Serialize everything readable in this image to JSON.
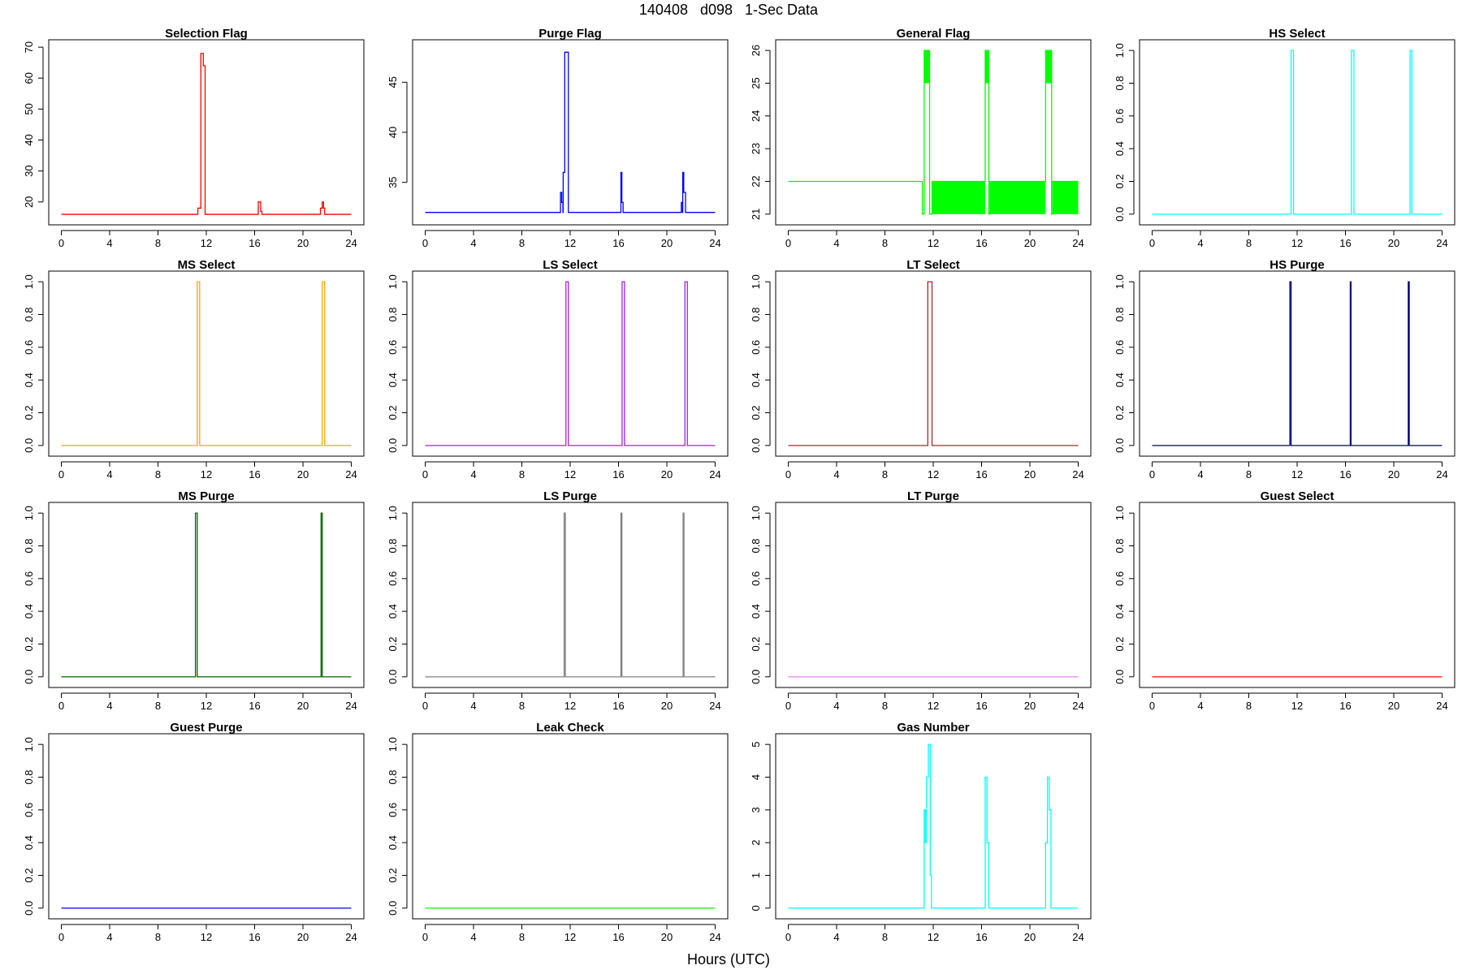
{
  "figure": {
    "title": "140408   d098   1-Sec Data",
    "xlabel": "Hours (UTC)"
  },
  "chart_data": [
    {
      "type": "line",
      "title": "Selection Flag",
      "color": "#ff0000",
      "xlim": [
        0,
        24
      ],
      "xticks": [
        0,
        4,
        8,
        12,
        16,
        20,
        24
      ],
      "ylim": [
        15,
        70
      ],
      "yticks": [
        20,
        30,
        40,
        50,
        60,
        70
      ],
      "points": [
        [
          0,
          16
        ],
        [
          11.3,
          16
        ],
        [
          11.3,
          18
        ],
        [
          11.55,
          18
        ],
        [
          11.55,
          68
        ],
        [
          11.75,
          68
        ],
        [
          11.75,
          64
        ],
        [
          11.9,
          64
        ],
        [
          11.9,
          16
        ],
        [
          16.3,
          16
        ],
        [
          16.3,
          20
        ],
        [
          16.5,
          20
        ],
        [
          16.5,
          17
        ],
        [
          16.6,
          17
        ],
        [
          16.6,
          16
        ],
        [
          21.45,
          16
        ],
        [
          21.45,
          18
        ],
        [
          21.6,
          18
        ],
        [
          21.6,
          20
        ],
        [
          21.7,
          20
        ],
        [
          21.7,
          18
        ],
        [
          21.8,
          18
        ],
        [
          21.8,
          16
        ],
        [
          24,
          16
        ]
      ]
    },
    {
      "type": "line",
      "title": "Purge Flag",
      "color": "#0000ff",
      "xlim": [
        0,
        24
      ],
      "xticks": [
        0,
        4,
        8,
        12,
        16,
        20,
        24
      ],
      "ylim": [
        31.5,
        48.5
      ],
      "yticks": [
        35,
        40,
        45
      ],
      "points": [
        [
          0,
          32
        ],
        [
          11.2,
          32
        ],
        [
          11.2,
          34
        ],
        [
          11.3,
          34
        ],
        [
          11.3,
          33
        ],
        [
          11.4,
          33
        ],
        [
          11.4,
          32
        ],
        [
          11.42,
          32
        ],
        [
          11.42,
          36
        ],
        [
          11.55,
          36
        ],
        [
          11.55,
          48
        ],
        [
          11.85,
          48
        ],
        [
          11.85,
          32
        ],
        [
          16.2,
          32
        ],
        [
          16.2,
          36
        ],
        [
          16.28,
          36
        ],
        [
          16.28,
          33
        ],
        [
          16.38,
          33
        ],
        [
          16.38,
          32
        ],
        [
          21.2,
          32
        ],
        [
          21.2,
          33
        ],
        [
          21.3,
          33
        ],
        [
          21.3,
          32
        ],
        [
          21.32,
          32
        ],
        [
          21.32,
          36
        ],
        [
          21.4,
          36
        ],
        [
          21.4,
          34
        ],
        [
          21.55,
          34
        ],
        [
          21.55,
          32
        ],
        [
          24,
          32
        ]
      ]
    },
    {
      "type": "line",
      "title": "General Flag",
      "color": "#00ff00",
      "xlim": [
        0,
        24
      ],
      "xticks": [
        0,
        4,
        8,
        12,
        16,
        20,
        24
      ],
      "ylim": [
        20.9,
        26.1
      ],
      "yticks": [
        21,
        22,
        23,
        24,
        25,
        26
      ],
      "points": [
        [
          0,
          22
        ],
        [
          11.1,
          22
        ],
        [
          11.1,
          21
        ],
        [
          11.25,
          21
        ],
        [
          11.25,
          26
        ],
        [
          11.7,
          26
        ],
        [
          11.7,
          21
        ],
        [
          11.9,
          21
        ],
        [
          11.9,
          22
        ],
        [
          16.3,
          22
        ],
        [
          16.3,
          26
        ],
        [
          16.6,
          26
        ],
        [
          16.6,
          21
        ],
        [
          16.7,
          21
        ],
        [
          16.7,
          22
        ],
        [
          21.3,
          22
        ],
        [
          21.3,
          26
        ],
        [
          21.8,
          26
        ],
        [
          21.8,
          21
        ],
        [
          21.9,
          21
        ],
        [
          21.9,
          22
        ],
        [
          24,
          22
        ]
      ],
      "filled_bands": [
        {
          "x": [
            11.25,
            11.7
          ],
          "y": [
            25,
            26
          ]
        },
        {
          "x": [
            11.9,
            16.3
          ],
          "y": [
            21,
            22
          ]
        },
        {
          "x": [
            16.3,
            16.6
          ],
          "y": [
            25,
            26
          ]
        },
        {
          "x": [
            16.7,
            21.3
          ],
          "y": [
            21,
            22
          ]
        },
        {
          "x": [
            21.3,
            21.8
          ],
          "y": [
            25,
            26
          ]
        },
        {
          "x": [
            21.9,
            24
          ],
          "y": [
            21,
            22
          ]
        }
      ]
    },
    {
      "type": "line",
      "title": "HS Select",
      "color": "#00ffff",
      "xlim": [
        0,
        24
      ],
      "xticks": [
        0,
        4,
        8,
        12,
        16,
        20,
        24
      ],
      "ylim": [
        -0.02,
        1.02
      ],
      "yticks": [
        0.0,
        0.2,
        0.4,
        0.6,
        0.8,
        1.0
      ],
      "points": [
        [
          0,
          0
        ],
        [
          11.5,
          0
        ],
        [
          11.5,
          1
        ],
        [
          11.7,
          1
        ],
        [
          11.7,
          0
        ],
        [
          16.5,
          0
        ],
        [
          16.5,
          1
        ],
        [
          16.7,
          1
        ],
        [
          16.7,
          0
        ],
        [
          21.35,
          0
        ],
        [
          21.35,
          1
        ],
        [
          21.5,
          1
        ],
        [
          21.5,
          0
        ],
        [
          24,
          0
        ]
      ]
    },
    {
      "type": "line",
      "title": "MS Select",
      "color": "#ffa500",
      "xlim": [
        0,
        24
      ],
      "xticks": [
        0,
        4,
        8,
        12,
        16,
        20,
        24
      ],
      "ylim": [
        -0.02,
        1.02
      ],
      "yticks": [
        0.0,
        0.2,
        0.4,
        0.6,
        0.8,
        1.0
      ],
      "points": [
        [
          0,
          0
        ],
        [
          11.25,
          0
        ],
        [
          11.25,
          1
        ],
        [
          11.45,
          1
        ],
        [
          11.45,
          0
        ],
        [
          21.6,
          0
        ],
        [
          21.6,
          1
        ],
        [
          21.8,
          1
        ],
        [
          21.8,
          0
        ],
        [
          24,
          0
        ]
      ]
    },
    {
      "type": "line",
      "title": "LS Select",
      "color": "#a020f0",
      "xlim": [
        0,
        24
      ],
      "xticks": [
        0,
        4,
        8,
        12,
        16,
        20,
        24
      ],
      "ylim": [
        -0.02,
        1.02
      ],
      "yticks": [
        0.0,
        0.2,
        0.4,
        0.6,
        0.8,
        1.0
      ],
      "points": [
        [
          0,
          0
        ],
        [
          11.65,
          0
        ],
        [
          11.65,
          1
        ],
        [
          11.85,
          1
        ],
        [
          11.85,
          0
        ],
        [
          16.3,
          0
        ],
        [
          16.3,
          1
        ],
        [
          16.5,
          1
        ],
        [
          16.5,
          0
        ],
        [
          21.5,
          0
        ],
        [
          21.5,
          1
        ],
        [
          21.7,
          1
        ],
        [
          21.7,
          0
        ],
        [
          24,
          0
        ]
      ]
    },
    {
      "type": "line",
      "title": "LT Select",
      "color": "#a52a2a",
      "xlim": [
        0,
        24
      ],
      "xticks": [
        0,
        4,
        8,
        12,
        16,
        20,
        24
      ],
      "ylim": [
        -0.02,
        1.02
      ],
      "yticks": [
        0.0,
        0.2,
        0.4,
        0.6,
        0.8,
        1.0
      ],
      "points": [
        [
          0,
          0
        ],
        [
          11.55,
          0
        ],
        [
          11.55,
          1
        ],
        [
          11.9,
          1
        ],
        [
          11.9,
          0
        ],
        [
          24,
          0
        ]
      ]
    },
    {
      "type": "line",
      "title": "HS Purge",
      "color": "#000080",
      "xlim": [
        0,
        24
      ],
      "xticks": [
        0,
        4,
        8,
        12,
        16,
        20,
        24
      ],
      "ylim": [
        -0.02,
        1.02
      ],
      "yticks": [
        0.0,
        0.2,
        0.4,
        0.6,
        0.8,
        1.0
      ],
      "points": [
        [
          0,
          0
        ],
        [
          11.4,
          0
        ],
        [
          11.4,
          1
        ],
        [
          11.5,
          1
        ],
        [
          11.5,
          0
        ],
        [
          16.4,
          0
        ],
        [
          16.4,
          1
        ],
        [
          16.46,
          1
        ],
        [
          16.46,
          0
        ],
        [
          21.2,
          0
        ],
        [
          21.2,
          1
        ],
        [
          21.28,
          1
        ],
        [
          21.28,
          0
        ],
        [
          24,
          0
        ]
      ]
    },
    {
      "type": "line",
      "title": "MS Purge",
      "color": "#006400",
      "xlim": [
        0,
        24
      ],
      "xticks": [
        0,
        4,
        8,
        12,
        16,
        20,
        24
      ],
      "ylim": [
        -0.02,
        1.02
      ],
      "yticks": [
        0.0,
        0.2,
        0.4,
        0.6,
        0.8,
        1.0
      ],
      "points": [
        [
          0,
          0
        ],
        [
          11.1,
          0
        ],
        [
          11.1,
          1
        ],
        [
          11.25,
          1
        ],
        [
          11.25,
          0
        ],
        [
          21.5,
          0
        ],
        [
          21.5,
          1
        ],
        [
          21.6,
          1
        ],
        [
          21.6,
          0
        ],
        [
          24,
          0
        ]
      ]
    },
    {
      "type": "line",
      "title": "LS Purge",
      "color": "#808080",
      "xlim": [
        0,
        24
      ],
      "xticks": [
        0,
        4,
        8,
        12,
        16,
        20,
        24
      ],
      "ylim": [
        -0.02,
        1.02
      ],
      "yticks": [
        0.0,
        0.2,
        0.4,
        0.6,
        0.8,
        1.0
      ],
      "points": [
        [
          0,
          0
        ],
        [
          11.5,
          0
        ],
        [
          11.5,
          1
        ],
        [
          11.6,
          1
        ],
        [
          11.6,
          0
        ],
        [
          16.2,
          0
        ],
        [
          16.2,
          1
        ],
        [
          16.28,
          1
        ],
        [
          16.28,
          0
        ],
        [
          21.35,
          0
        ],
        [
          21.35,
          1
        ],
        [
          21.42,
          1
        ],
        [
          21.42,
          0
        ],
        [
          24,
          0
        ]
      ]
    },
    {
      "type": "line",
      "title": "LT Purge",
      "color": "#ee82ee",
      "xlim": [
        0,
        24
      ],
      "xticks": [
        0,
        4,
        8,
        12,
        16,
        20,
        24
      ],
      "ylim": [
        -0.02,
        1.02
      ],
      "yticks": [
        0.0,
        0.2,
        0.4,
        0.6,
        0.8,
        1.0
      ],
      "points": [
        [
          0,
          0
        ],
        [
          24,
          0
        ]
      ]
    },
    {
      "type": "line",
      "title": "Guest Select",
      "color": "#ff0000",
      "xlim": [
        0,
        24
      ],
      "xticks": [
        0,
        4,
        8,
        12,
        16,
        20,
        24
      ],
      "ylim": [
        -0.02,
        1.02
      ],
      "yticks": [
        0.0,
        0.2,
        0.4,
        0.6,
        0.8,
        1.0
      ],
      "points": [
        [
          0,
          0
        ],
        [
          24,
          0
        ]
      ]
    },
    {
      "type": "line",
      "title": "Guest Purge",
      "color": "#0000ff",
      "xlim": [
        0,
        24
      ],
      "xticks": [
        0,
        4,
        8,
        12,
        16,
        20,
        24
      ],
      "ylim": [
        -0.02,
        1.02
      ],
      "yticks": [
        0.0,
        0.2,
        0.4,
        0.6,
        0.8,
        1.0
      ],
      "points": [
        [
          0,
          0
        ],
        [
          24,
          0
        ]
      ]
    },
    {
      "type": "line",
      "title": "Leak Check",
      "color": "#00ff00",
      "xlim": [
        0,
        24
      ],
      "xticks": [
        0,
        4,
        8,
        12,
        16,
        20,
        24
      ],
      "ylim": [
        -0.02,
        1.02
      ],
      "yticks": [
        0.0,
        0.2,
        0.4,
        0.6,
        0.8,
        1.0
      ],
      "points": [
        [
          0,
          0
        ],
        [
          24,
          0
        ]
      ]
    },
    {
      "type": "line",
      "title": "Gas Number",
      "color": "#00ffff",
      "xlim": [
        0,
        24
      ],
      "xticks": [
        0,
        4,
        8,
        12,
        16,
        20,
        24
      ],
      "ylim": [
        -0.1,
        5.1
      ],
      "yticks": [
        0,
        1,
        2,
        3,
        4,
        5
      ],
      "points": [
        [
          0,
          0
        ],
        [
          11.25,
          0
        ],
        [
          11.25,
          3
        ],
        [
          11.35,
          3
        ],
        [
          11.35,
          2
        ],
        [
          11.45,
          2
        ],
        [
          11.45,
          4
        ],
        [
          11.6,
          4
        ],
        [
          11.6,
          5
        ],
        [
          11.75,
          5
        ],
        [
          11.75,
          1
        ],
        [
          11.85,
          1
        ],
        [
          11.85,
          0
        ],
        [
          16.3,
          0
        ],
        [
          16.3,
          4
        ],
        [
          16.45,
          4
        ],
        [
          16.45,
          2
        ],
        [
          16.6,
          2
        ],
        [
          16.6,
          0
        ],
        [
          21.3,
          0
        ],
        [
          21.3,
          2
        ],
        [
          21.45,
          2
        ],
        [
          21.45,
          4
        ],
        [
          21.6,
          4
        ],
        [
          21.6,
          3
        ],
        [
          21.75,
          3
        ],
        [
          21.75,
          0
        ],
        [
          24,
          0
        ]
      ]
    }
  ]
}
